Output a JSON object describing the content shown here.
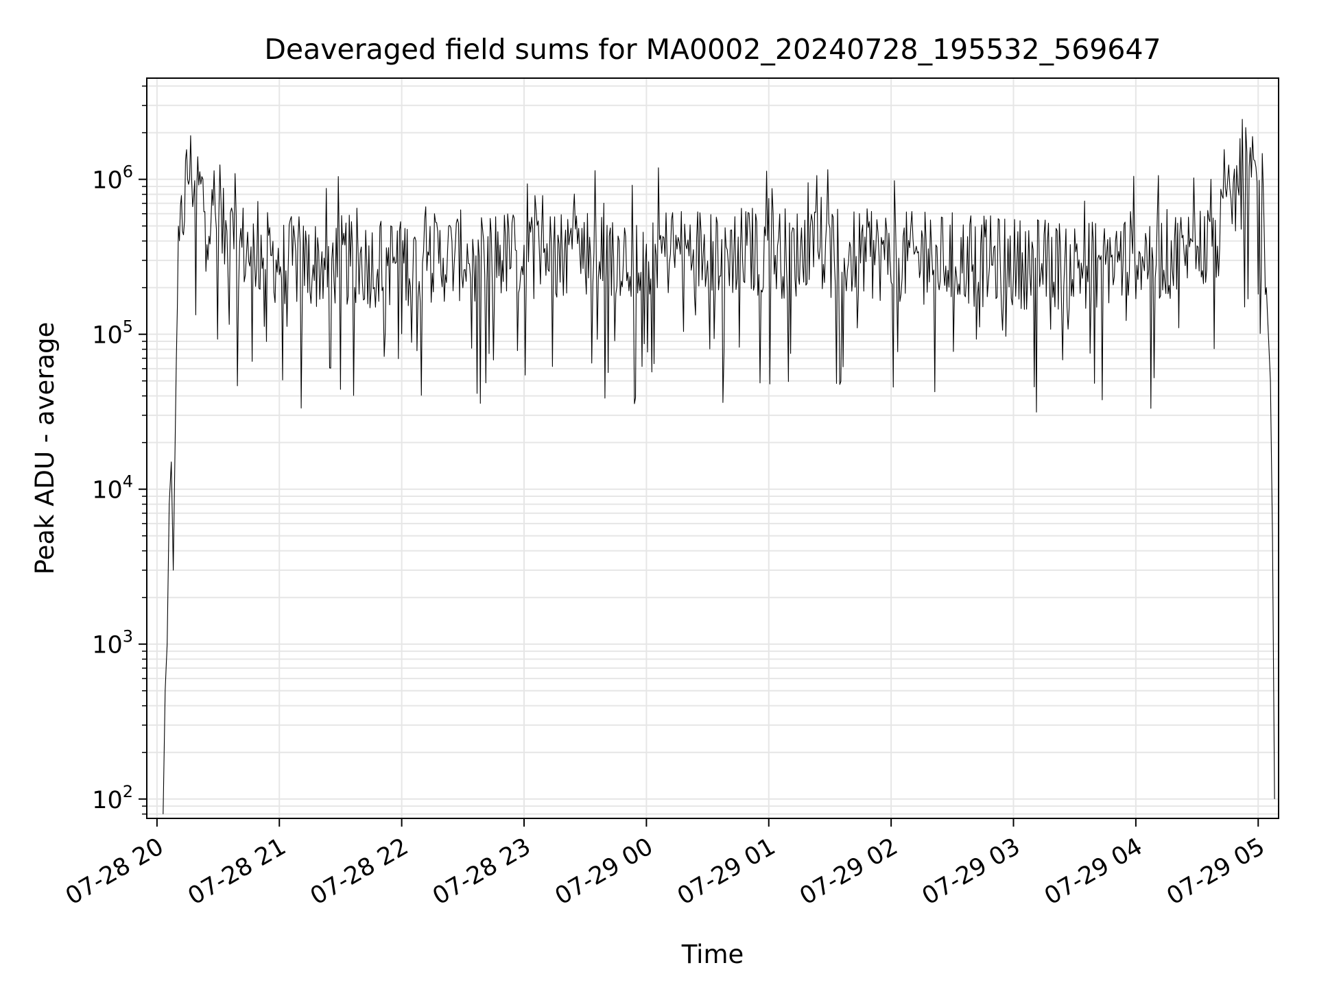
{
  "chart_data": {
    "type": "line",
    "title": "Deaveraged field sums for MA0002_20240728_195532_569647",
    "xlabel": "Time",
    "ylabel": "Peak ADU - average",
    "yscale": "log",
    "ylim": [
      75,
      4500000
    ],
    "xlim": [
      "2024-07-28 19:55",
      "2024-07-29 05:10"
    ],
    "grid": true,
    "line_color": "#000000",
    "grid_color": "#e6e6e6",
    "x_ticks": [
      {
        "value": "2024-07-28 20:00",
        "label": "07-28 20"
      },
      {
        "value": "2024-07-28 21:00",
        "label": "07-28 21"
      },
      {
        "value": "2024-07-28 22:00",
        "label": "07-28 22"
      },
      {
        "value": "2024-07-28 23:00",
        "label": "07-28 23"
      },
      {
        "value": "2024-07-29 00:00",
        "label": "07-29 00"
      },
      {
        "value": "2024-07-29 01:00",
        "label": "07-29 01"
      },
      {
        "value": "2024-07-29 02:00",
        "label": "07-29 02"
      },
      {
        "value": "2024-07-29 03:00",
        "label": "07-29 03"
      },
      {
        "value": "2024-07-29 04:00",
        "label": "07-29 04"
      },
      {
        "value": "2024-07-29 05:00",
        "label": "07-29 05"
      }
    ],
    "y_ticks": [
      {
        "value": 100,
        "base": "10",
        "exp": "2"
      },
      {
        "value": 1000,
        "base": "10",
        "exp": "3"
      },
      {
        "value": 10000,
        "base": "10",
        "exp": "4"
      },
      {
        "value": 100000,
        "base": "10",
        "exp": "5"
      },
      {
        "value": 1000000,
        "base": "10",
        "exp": "6"
      }
    ],
    "series": [
      {
        "x": [
          "2024-07-28 20:03",
          "2024-07-28 20:04",
          "2024-07-28 20:05",
          "2024-07-28 20:06",
          "2024-07-28 20:07",
          "2024-07-28 20:08",
          "2024-07-28 20:10",
          "2024-07-28 20:12",
          "2024-07-28 20:14",
          "2024-07-28 20:16",
          "2024-07-28 20:18",
          "2024-07-28 20:20",
          "2024-07-28 20:22",
          "2024-07-28 20:25",
          "2024-07-28 20:28",
          "2024-07-28 20:32",
          "2024-07-28 20:36",
          "2024-07-28 20:40",
          "2024-07-28 20:45",
          "2024-07-28 20:50",
          "2024-07-28 21:00",
          "2024-07-28 21:15",
          "2024-07-28 21:30",
          "2024-07-28 21:45",
          "2024-07-28 22:00",
          "2024-07-28 22:30",
          "2024-07-28 23:00",
          "2024-07-28 23:30",
          "2024-07-29 00:00",
          "2024-07-29 00:30",
          "2024-07-29 01:00",
          "2024-07-29 01:30",
          "2024-07-29 02:00",
          "2024-07-29 02:30",
          "2024-07-29 03:00",
          "2024-07-29 03:30",
          "2024-07-29 03:50",
          "2024-07-29 04:00",
          "2024-07-29 04:10",
          "2024-07-29 04:20",
          "2024-07-29 04:30",
          "2024-07-29 04:40",
          "2024-07-29 04:45",
          "2024-07-29 04:50",
          "2024-07-29 04:55",
          "2024-07-29 05:00",
          "2024-07-29 05:02",
          "2024-07-29 05:04",
          "2024-07-29 05:06",
          "2024-07-29 05:07",
          "2024-07-29 05:08"
        ],
        "values": [
          80,
          500,
          1000,
          8000,
          15000,
          3000,
          200000,
          500000,
          900000,
          1200000,
          1000000,
          900000,
          800000,
          600000,
          500000,
          450000,
          400000,
          380000,
          350000,
          330000,
          300000,
          280000,
          300000,
          290000,
          300000,
          320000,
          330000,
          350000,
          340000,
          350000,
          340000,
          330000,
          320000,
          300000,
          290000,
          280000,
          300000,
          330000,
          320000,
          330000,
          350000,
          400000,
          600000,
          900000,
          1000000,
          900000,
          600000,
          200000,
          50000,
          5000,
          100
        ]
      }
    ]
  }
}
